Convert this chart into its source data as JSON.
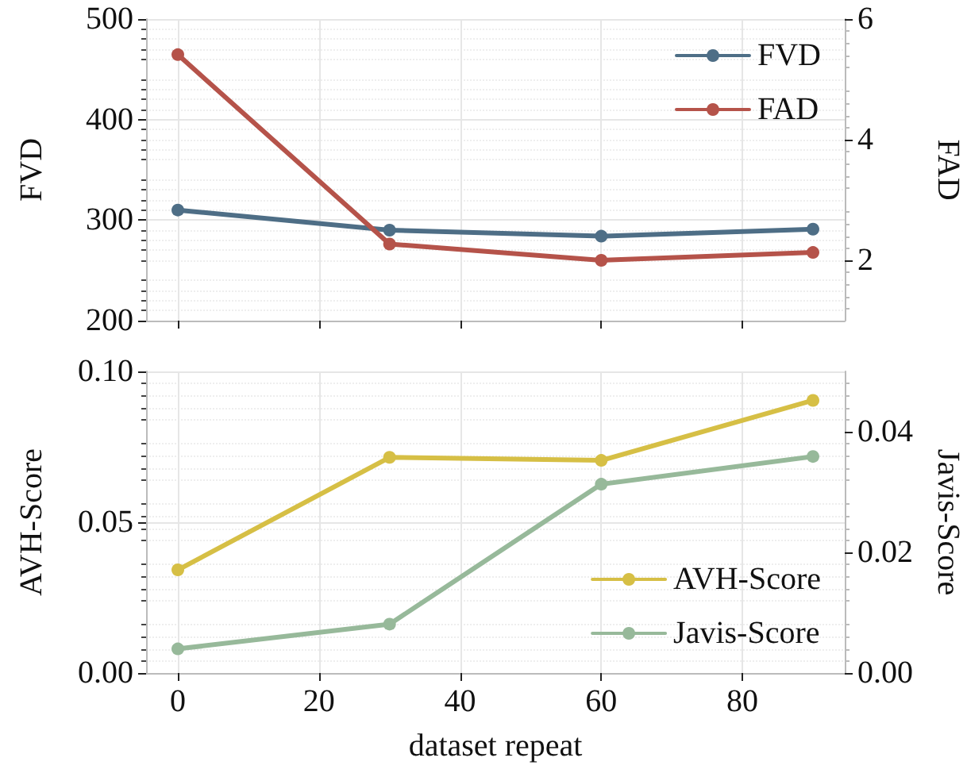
{
  "chart_data": [
    {
      "type": "line",
      "xlim": [
        -4.5,
        94.5
      ],
      "xticks": [
        0,
        20,
        40,
        60,
        80
      ],
      "ylabel": "FVD",
      "y2label": "FAD",
      "ylim": [
        200,
        500
      ],
      "yticks": [
        200,
        300,
        400,
        500
      ],
      "y2lim": [
        1,
        6
      ],
      "y2ticks": [
        2,
        4,
        6
      ],
      "tick_labels": "y",
      "grid": true,
      "legend": "top right",
      "marker": "circle",
      "line_style": "solid",
      "x": [
        0,
        30,
        60,
        90
      ],
      "series": [
        {
          "name": "FVD",
          "color": "#4e6e86",
          "values": [
            310,
            290,
            284,
            291
          ]
        },
        {
          "name": "FAD",
          "color": "#b5534a",
          "axis": "y2",
          "values": [
            5.41,
            2.27,
            2.0,
            2.13
          ]
        }
      ]
    },
    {
      "type": "line",
      "xlim": [
        -4.5,
        94.5
      ],
      "xticks": [
        0,
        20,
        40,
        60,
        80
      ],
      "xlabel": "dataset repeat",
      "ylabel": "AVH-Score",
      "y2label": "Javis-Score",
      "ylim": [
        0,
        0.1
      ],
      "yticks": [
        {
          "value": 0,
          "label": "0.00"
        },
        {
          "value": 0.05,
          "label": "0.05"
        },
        {
          "value": 0.1,
          "label": "0.10"
        }
      ],
      "y2lim": [
        0,
        0.05
      ],
      "y2ticks": [
        {
          "value": 0,
          "label": "0.00"
        },
        {
          "value": 0.02,
          "label": "0.02"
        },
        {
          "value": 0.04,
          "label": "0.04"
        }
      ],
      "grid": true,
      "legend": "bottom right",
      "marker": "circle",
      "line_style": "solid",
      "x": [
        0,
        30,
        60,
        90
      ],
      "series": [
        {
          "name": "AVH-Score",
          "color": "#d6bf45",
          "values": [
            0.0342,
            0.0715,
            0.0705,
            0.0904
          ]
        },
        {
          "name": "Javis-Score",
          "color": "#97b99a",
          "axis": "y2",
          "values": [
            0.004,
            0.0081,
            0.0313,
            0.0359
          ]
        }
      ]
    }
  ]
}
